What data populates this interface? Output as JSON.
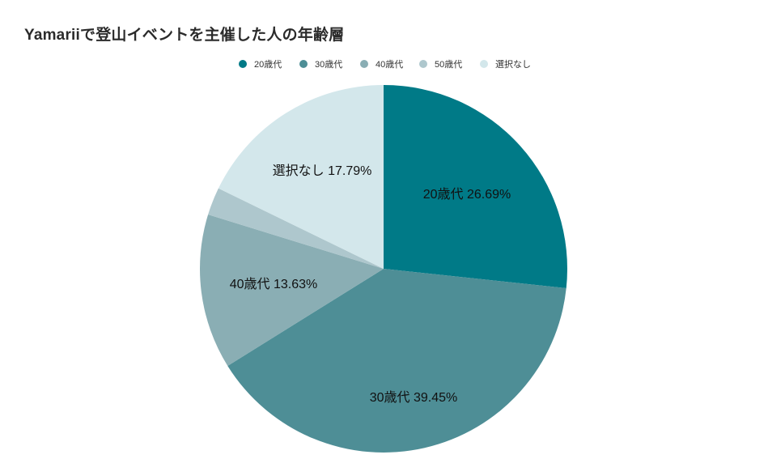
{
  "chart_data": {
    "type": "pie",
    "title": "Yamariiで登山イベントを主催した人の年齢層",
    "legend_position": "top",
    "categories": [
      "20歳代",
      "30歳代",
      "40歳代",
      "50歳代",
      "選択なし"
    ],
    "values": [
      26.69,
      39.45,
      13.63,
      2.44,
      17.79
    ],
    "value_unit": "%",
    "colors": [
      "#007a87",
      "#4e8e96",
      "#8aaeb4",
      "#aec7cd",
      "#d3e7eb"
    ],
    "data_labels": [
      "20歳代 26.69%",
      "30歳代 39.45%",
      "40歳代 13.63%",
      "",
      "選択なし 17.79%"
    ]
  }
}
